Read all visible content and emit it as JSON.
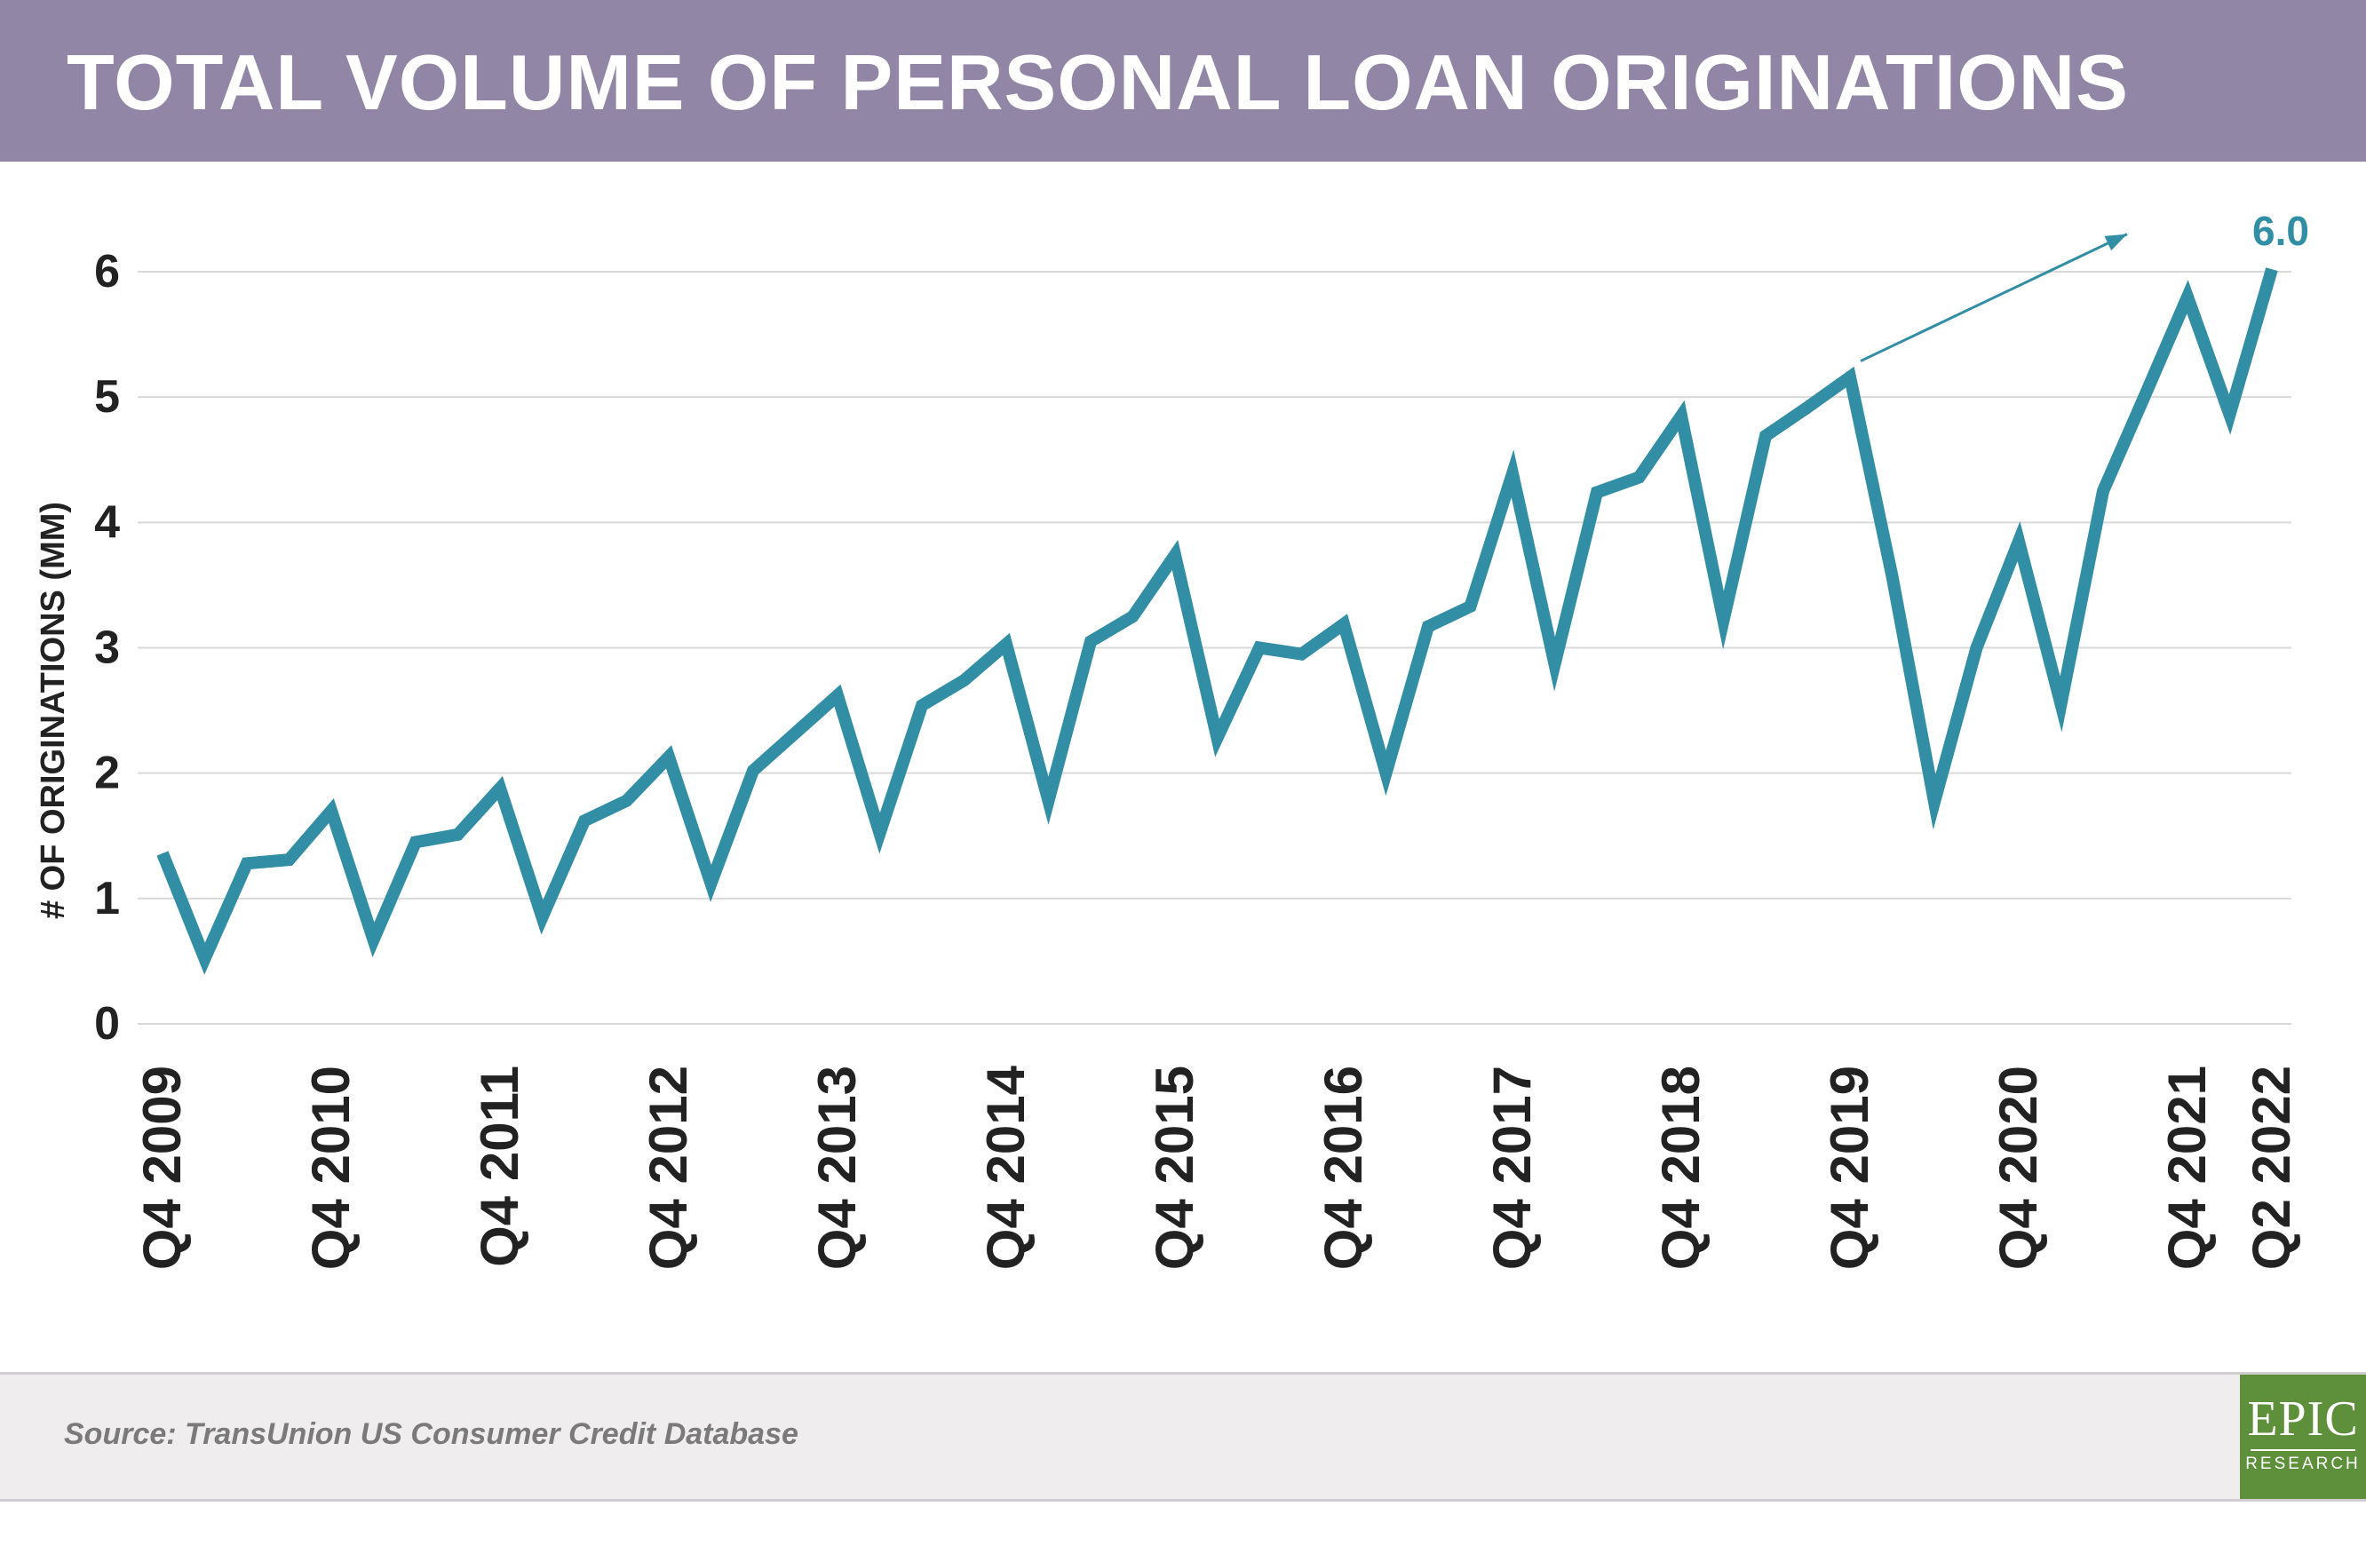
{
  "title": "TOTAL VOLUME OF PERSONAL LOAN ORIGINATIONS",
  "source": "Source: TransUnion US Consumer Credit Database",
  "logo": {
    "main": "EPIC",
    "sub": "RESEARCH"
  },
  "colors": {
    "header": "#9186a5",
    "line": "#318ea4",
    "grid": "#d9d9d9",
    "footer": "#efedee",
    "logo": "#5e8f3b",
    "text": "#222222"
  },
  "chart_data": {
    "type": "line",
    "title": "TOTAL VOLUME OF PERSONAL LOAN ORIGINATIONS",
    "xlabel": "",
    "ylabel": "# OF ORIGINATIONS (MM)",
    "ylim": [
      0,
      6
    ],
    "yticks": [
      0,
      1,
      2,
      3,
      4,
      5,
      6
    ],
    "grid": true,
    "x_tick_labels": [
      "Q4 2009",
      "Q4 2010",
      "Q4 2011",
      "Q4 2012",
      "Q4 2013",
      "Q4 2014",
      "Q4 2015",
      "Q4 2016",
      "Q4 2017",
      "Q4 2018",
      "Q4 2019",
      "Q4 2020",
      "Q4 2021",
      "Q2 2022"
    ],
    "x": [
      "Q4 2009",
      "Q1 2010",
      "Q2 2010",
      "Q3 2010",
      "Q4 2010",
      "Q1 2011",
      "Q2 2011",
      "Q3 2011",
      "Q4 2011",
      "Q1 2012",
      "Q2 2012",
      "Q3 2012",
      "Q4 2012",
      "Q1 2013",
      "Q2 2013",
      "Q3 2013",
      "Q4 2013",
      "Q1 2014",
      "Q2 2014",
      "Q3 2014",
      "Q4 2014",
      "Q1 2015",
      "Q2 2015",
      "Q3 2015",
      "Q4 2015",
      "Q1 2016",
      "Q2 2016",
      "Q3 2016",
      "Q4 2016",
      "Q1 2017",
      "Q2 2017",
      "Q3 2017",
      "Q4 2017",
      "Q1 2018",
      "Q2 2018",
      "Q3 2018",
      "Q4 2018",
      "Q1 2019",
      "Q2 2019",
      "Q3 2019",
      "Q4 2019",
      "Q1 2020",
      "Q2 2020",
      "Q3 2020",
      "Q4 2020",
      "Q1 2021",
      "Q2 2021",
      "Q3 2021",
      "Q4 2021",
      "Q1 2022",
      "Q2 2022"
    ],
    "series": [
      {
        "values": [
          1.36,
          0.52,
          1.28,
          1.31,
          1.7,
          0.67,
          1.45,
          1.51,
          1.88,
          0.85,
          1.62,
          1.78,
          2.13,
          1.12,
          2.02,
          2.32,
          2.62,
          1.52,
          2.54,
          2.74,
          3.03,
          1.78,
          3.05,
          3.25,
          3.74,
          2.28,
          3.0,
          2.95,
          3.19,
          2.0,
          3.17,
          3.33,
          4.39,
          2.87,
          4.24,
          4.36,
          4.85,
          3.22,
          4.69,
          4.92,
          5.16,
          3.57,
          1.77,
          3.0,
          3.85,
          2.55,
          4.25,
          5.02,
          5.8,
          4.86,
          6.02
        ]
      }
    ],
    "annotations": [
      {
        "text": "6.0",
        "x": "Q2 2022",
        "y": 6.0
      }
    ]
  }
}
